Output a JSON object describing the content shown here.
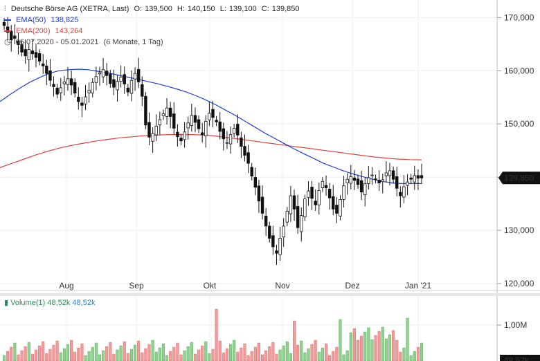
{
  "header": {
    "instrument": "Deutsche Börse AG (XETRA, Last)",
    "ohlc": {
      "o_label": "O:",
      "o": "139,500",
      "h_label": "H:",
      "h": "140,150",
      "l_label": "L:",
      "l": "139,100",
      "c_label": "C:",
      "c": "139,850"
    },
    "ema50": {
      "label": "EMA(50)",
      "value": "138,825",
      "color": "#1a3fd6"
    },
    "ema200": {
      "label": "EMA(200)",
      "value": "143,264",
      "color": "#e0413a"
    },
    "range": {
      "dates": "06.07.2020 - 05.01.2021",
      "period": "(6 Monate, 1 Tag)"
    }
  },
  "volume": {
    "label": "Volume(1)",
    "v1": "48,52k",
    "v2": "48,52k",
    "axis_ticks": [
      "1,00M"
    ],
    "last_badge": "48,52k"
  },
  "last_price_badge": "139,850",
  "chart_data": {
    "type": "candlestick",
    "x_ticks": [
      "Aug",
      "Sep",
      "Okt",
      "Nov",
      "Dez",
      "Jan '21"
    ],
    "y_ticks": [
      "170,000",
      "160,000",
      "150,000",
      "140,000",
      "130,000",
      "120,000"
    ],
    "ylim": [
      120,
      172
    ],
    "series": {
      "close": [
        168.5,
        167.2,
        165.8,
        166.1,
        164.9,
        163.5,
        162.8,
        164.0,
        163.2,
        162.5,
        161.8,
        160.9,
        159.5,
        158.2,
        157.0,
        155.6,
        156.8,
        157.9,
        158.5,
        157.3,
        155.8,
        154.2,
        153.5,
        155.1,
        156.3,
        157.8,
        158.9,
        159.6,
        160.2,
        159.1,
        157.6,
        156.9,
        158.0,
        158.8,
        157.5,
        156.0,
        158.2,
        159.5,
        157.9,
        155.2,
        149.8,
        147.5,
        148.2,
        149.6,
        150.8,
        151.9,
        153.0,
        151.4,
        149.2,
        147.6,
        146.8,
        148.5,
        150.2,
        151.6,
        150.3,
        149.1,
        148.0,
        150.5,
        152.0,
        151.2,
        150.4,
        148.6,
        147.2,
        146.5,
        148.0,
        149.2,
        147.9,
        145.8,
        144.1,
        142.6,
        140.2,
        138.1,
        135.5,
        133.2,
        130.8,
        128.5,
        126.9,
        125.7,
        128.5,
        130.8,
        133.6,
        136.5,
        134.0,
        130.5,
        132.8,
        135.9,
        137.4,
        136.0,
        134.8,
        137.5,
        139.2,
        138.0,
        136.1,
        134.0,
        133.2,
        135.8,
        138.4,
        139.6,
        140.1,
        139.4,
        138.6,
        137.2,
        138.8,
        139.9,
        140.4,
        139.7,
        138.9,
        139.5,
        140.8,
        141.2,
        139.6,
        137.9,
        136.5,
        138.2,
        139.1,
        139.6,
        140.3,
        139.8,
        139.85
      ],
      "ema50": [
        154.2,
        155.5,
        156.7,
        157.8,
        158.7,
        159.5,
        160.0,
        160.2,
        160.3,
        160.2,
        159.9,
        159.6,
        159.2,
        158.8,
        158.4,
        158.0,
        157.6,
        157.1,
        156.6,
        156.0,
        155.3,
        154.5,
        153.6,
        152.6,
        151.6,
        150.5,
        149.4,
        148.3,
        147.3,
        146.3,
        145.3,
        144.4,
        143.5,
        142.6,
        141.9,
        141.2,
        140.6,
        140.1,
        139.6,
        139.2,
        138.9,
        138.8,
        138.8,
        138.8
      ],
      "ema200": [
        141.8,
        142.6,
        143.4,
        144.2,
        144.9,
        145.5,
        146.0,
        146.4,
        146.8,
        147.1,
        147.4,
        147.6,
        147.8,
        147.9,
        148.0,
        148.0,
        148.0,
        147.9,
        147.7,
        147.4,
        147.1,
        146.8,
        146.5,
        146.2,
        145.9,
        145.6,
        145.3,
        145.0,
        144.7,
        144.4,
        144.1,
        143.8,
        143.6,
        143.4,
        143.3,
        143.26
      ]
    }
  }
}
